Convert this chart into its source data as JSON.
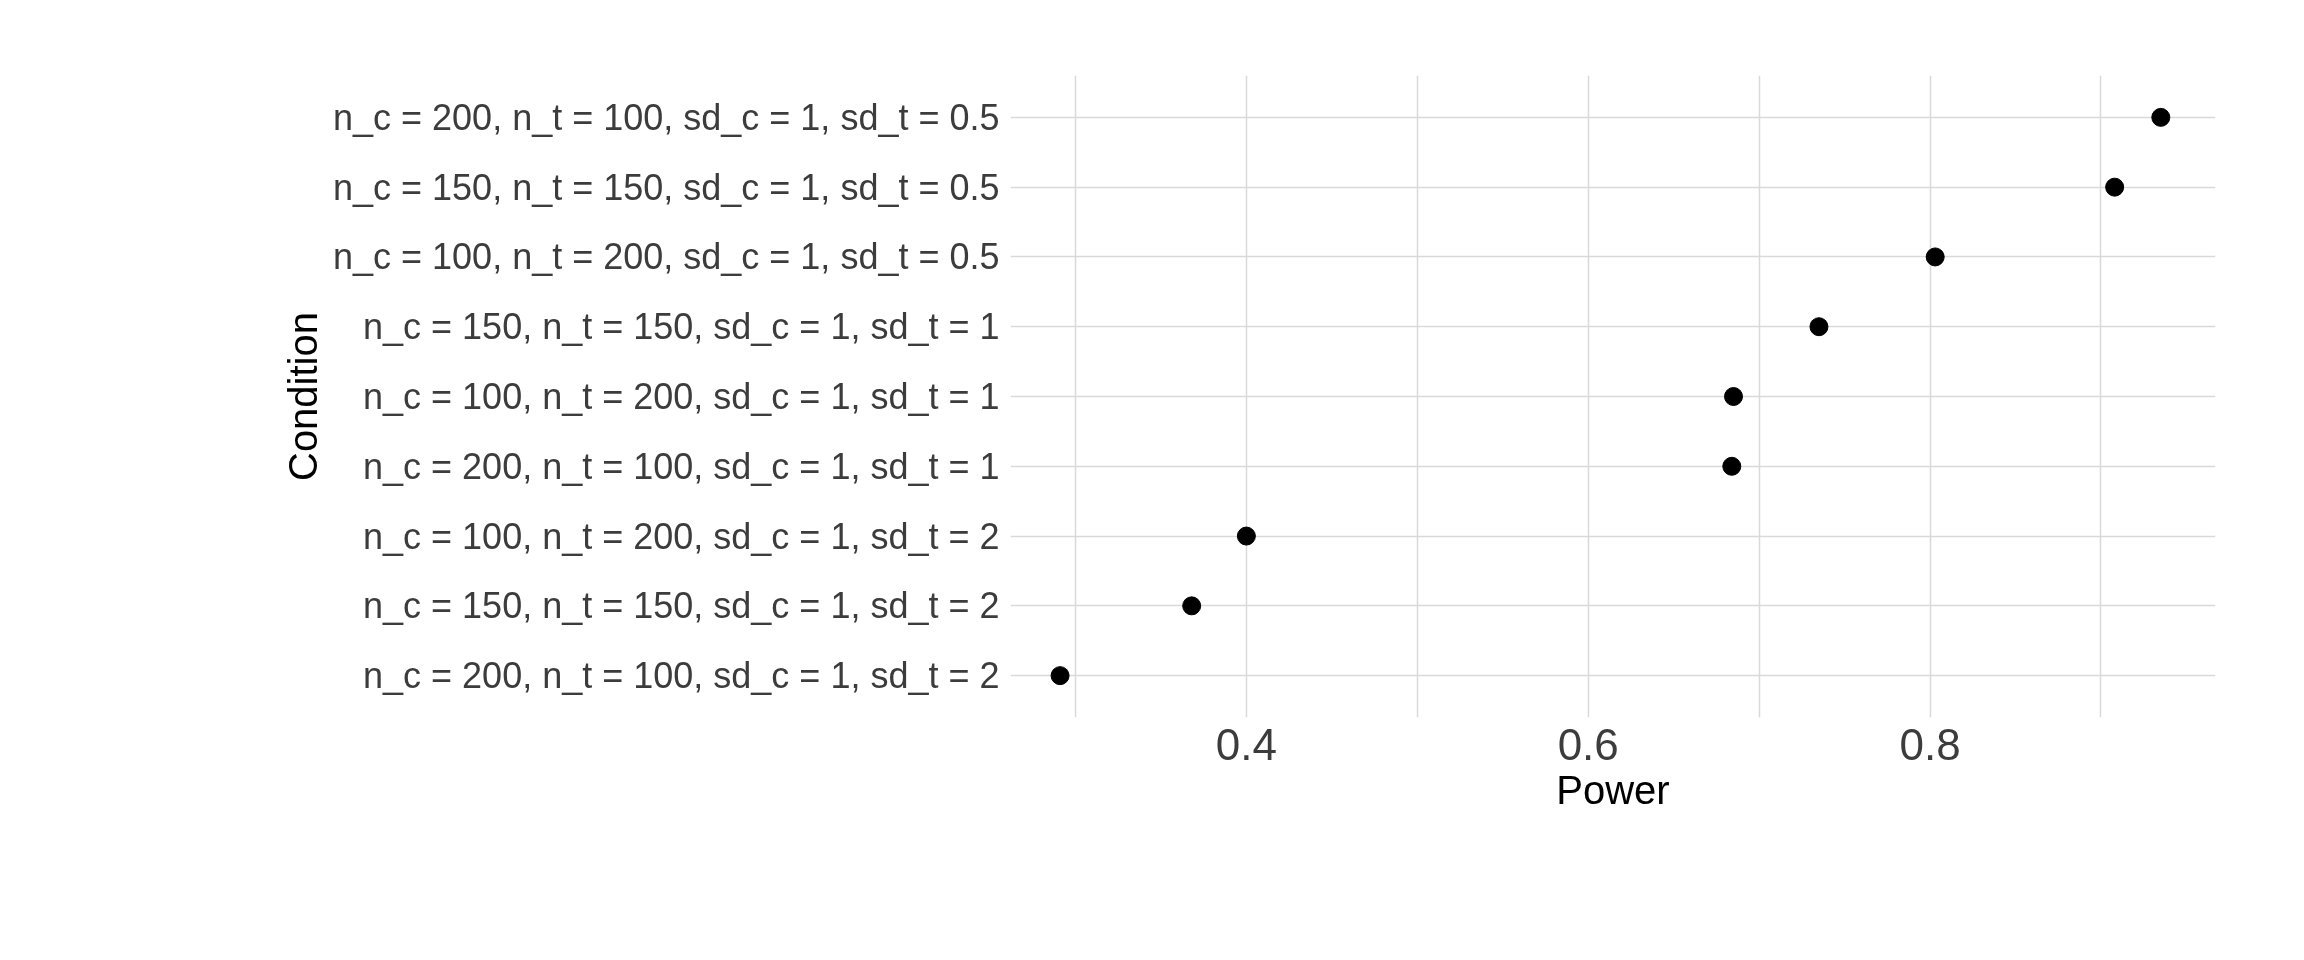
{
  "chart_data": {
    "type": "scatter",
    "xlabel": "Power",
    "ylabel": "Condition",
    "categories": [
      "n_c = 200, n_t = 100, sd_c = 1, sd_t = 0.5",
      "n_c = 150, n_t = 150, sd_c = 1, sd_t = 0.5",
      "n_c = 100, n_t = 200, sd_c = 1, sd_t = 0.5",
      "n_c = 150, n_t = 150, sd_c = 1, sd_t = 1",
      "n_c = 100, n_t = 200, sd_c = 1, sd_t = 1",
      "n_c = 200, n_t = 100, sd_c = 1, sd_t = 1",
      "n_c = 100, n_t = 200, sd_c = 1, sd_t = 2",
      "n_c = 150, n_t = 150, sd_c = 1, sd_t = 2",
      "n_c = 200, n_t = 100, sd_c = 1, sd_t = 2"
    ],
    "orientation": "horizontal",
    "values": [
      0.935,
      0.908,
      0.803,
      0.735,
      0.685,
      0.684,
      0.4,
      0.368,
      0.291
    ],
    "color": "#000000",
    "marker": "circle",
    "grid": true,
    "xlim": [
      0.262,
      0.967
    ],
    "xticks": [
      {
        "value": 0.3,
        "label": null
      },
      0.4,
      {
        "value": 0.5,
        "label": null
      },
      0.6,
      {
        "value": 0.7,
        "label": null
      },
      0.8,
      {
        "value": 0.9,
        "label": null
      }
    ]
  }
}
